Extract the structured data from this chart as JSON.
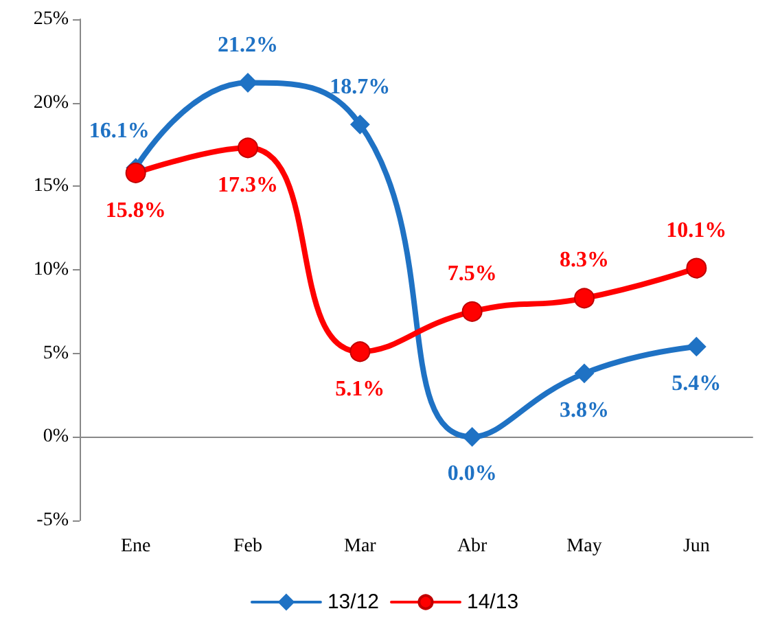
{
  "chart_data": {
    "type": "line",
    "categories": [
      "Ene",
      "Feb",
      "Mar",
      "Abr",
      "May",
      "Jun"
    ],
    "series": [
      {
        "name": "13/12",
        "color": "#1f72c4",
        "marker": "diamond",
        "values": [
          16.1,
          21.2,
          18.7,
          0.0,
          3.8,
          5.4
        ],
        "value_labels": [
          "16.1%",
          "21.2%",
          "18.7%",
          "0.0%",
          "3.8%",
          "5.4%"
        ]
      },
      {
        "name": "14/13",
        "color": "#ff0000",
        "marker": "circle",
        "values": [
          15.8,
          17.3,
          5.1,
          7.5,
          8.3,
          10.1
        ],
        "value_labels": [
          "15.8%",
          "17.3%",
          "5.1%",
          "7.5%",
          "8.3%",
          "10.1%"
        ]
      }
    ],
    "ylim": [
      -5,
      25
    ],
    "yticks": [
      {
        "value": -5,
        "label": "-5%"
      },
      {
        "value": 0,
        "label": "0%"
      },
      {
        "value": 5,
        "label": "5%"
      },
      {
        "value": 10,
        "label": "10%"
      },
      {
        "value": 15,
        "label": "15%"
      },
      {
        "value": 20,
        "label": "20%"
      },
      {
        "value": 25,
        "label": "25%"
      }
    ],
    "legend": "bottom",
    "line_style": "solid"
  }
}
